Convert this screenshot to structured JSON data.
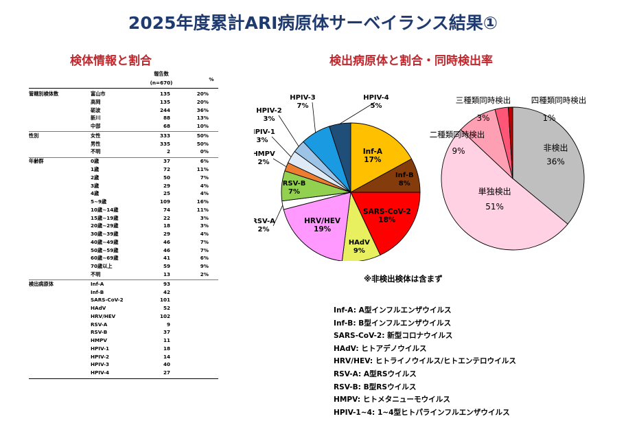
{
  "title": "2025年度累計ARI病原体サーベイランス結果①",
  "left_section_title": "検体情報と割合",
  "right_section_title": "検出病原体と割合・同時検出率",
  "table": {
    "header_count": "報告数",
    "header_n": "(n=670)",
    "header_pct": "%",
    "groups": [
      {
        "label": "管轄別検体数",
        "rows": [
          {
            "name": "富山市",
            "count": "135",
            "pct": "20%"
          },
          {
            "name": "高岡",
            "count": "135",
            "pct": "20%"
          },
          {
            "name": "砺波",
            "count": "244",
            "pct": "36%"
          },
          {
            "name": "新川",
            "count": "88",
            "pct": "13%"
          },
          {
            "name": "中部",
            "count": "68",
            "pct": "10%"
          }
        ]
      },
      {
        "label": "性別",
        "rows": [
          {
            "name": "女性",
            "count": "333",
            "pct": "50%"
          },
          {
            "name": "男性",
            "count": "335",
            "pct": "50%"
          },
          {
            "name": "不明",
            "count": "2",
            "pct": "0%"
          }
        ]
      },
      {
        "label": "年齢群",
        "rows": [
          {
            "name": "0歳",
            "count": "37",
            "pct": "6%"
          },
          {
            "name": "1歳",
            "count": "72",
            "pct": "11%"
          },
          {
            "name": "2歳",
            "count": "50",
            "pct": "7%"
          },
          {
            "name": "3歳",
            "count": "29",
            "pct": "4%"
          },
          {
            "name": "4歳",
            "count": "25",
            "pct": "4%"
          },
          {
            "name": "5~9歳",
            "count": "109",
            "pct": "16%"
          },
          {
            "name": "10歳~14歳",
            "count": "74",
            "pct": "11%"
          },
          {
            "name": "15歳~19歳",
            "count": "22",
            "pct": "3%"
          },
          {
            "name": "20歳~29歳",
            "count": "18",
            "pct": "3%"
          },
          {
            "name": "30歳~39歳",
            "count": "29",
            "pct": "4%"
          },
          {
            "name": "40歳~49歳",
            "count": "46",
            "pct": "7%"
          },
          {
            "name": "50歳~59歳",
            "count": "46",
            "pct": "7%"
          },
          {
            "name": "60歳~69歳",
            "count": "41",
            "pct": "6%"
          },
          {
            "name": "70歳以上",
            "count": "59",
            "pct": "9%"
          },
          {
            "name": "不明",
            "count": "13",
            "pct": "2%"
          }
        ]
      },
      {
        "label": "検出病原体",
        "rows": [
          {
            "name": "Inf-A",
            "count": "93",
            "pct": ""
          },
          {
            "name": "Inf-B",
            "count": "42",
            "pct": ""
          },
          {
            "name": "SARS-CoV-2",
            "count": "101",
            "pct": ""
          },
          {
            "name": "HAdV",
            "count": "52",
            "pct": ""
          },
          {
            "name": "HRV/HEV",
            "count": "102",
            "pct": ""
          },
          {
            "name": "RSV-A",
            "count": "9",
            "pct": ""
          },
          {
            "name": "RSV-B",
            "count": "37",
            "pct": ""
          },
          {
            "name": "HMPV",
            "count": "11",
            "pct": ""
          },
          {
            "name": "HPIV-1",
            "count": "18",
            "pct": ""
          },
          {
            "name": "HPIV-2",
            "count": "14",
            "pct": ""
          },
          {
            "name": "HPIV-3",
            "count": "40",
            "pct": ""
          },
          {
            "name": "HPIV-4",
            "count": "27",
            "pct": ""
          }
        ]
      }
    ]
  },
  "chart_data": [
    {
      "type": "pie",
      "title": "",
      "slices": [
        {
          "name": "Inf-A",
          "label": "Inf-A",
          "value": 17,
          "pct_label": "17%",
          "color": "#ffc000"
        },
        {
          "name": "Inf-B",
          "label": "Inf-B",
          "value": 8,
          "pct_label": "8%",
          "color": "#843c0c"
        },
        {
          "name": "SARS-CoV-2",
          "label": "SARS-CoV-2",
          "value": 18,
          "pct_label": "18%",
          "color": "#ff0000"
        },
        {
          "name": "HAdV",
          "label": "HAdV",
          "value": 9,
          "pct_label": "9%",
          "color": "#e8f060"
        },
        {
          "name": "HRV/HEV",
          "label": "HRV/HEV",
          "value": 19,
          "pct_label": "19%",
          "color": "#ff99ff"
        },
        {
          "name": "RSV-A",
          "label": "RSV-A",
          "value": 2,
          "pct_label": "2%",
          "color": "#ffffff"
        },
        {
          "name": "RSV-B",
          "label": "RSV-B",
          "value": 7,
          "pct_label": "7%",
          "color": "#92d050"
        },
        {
          "name": "HMPV",
          "label": "HMPV",
          "value": 2,
          "pct_label": "2%",
          "color": "#ed7d31"
        },
        {
          "name": "HPIV-1",
          "label": "HPIV-1",
          "value": 3,
          "pct_label": "3%",
          "color": "#deebf7"
        },
        {
          "name": "HPIV-2",
          "label": "HPIV-2",
          "value": 3,
          "pct_label": "3%",
          "color": "#9dc3e6"
        },
        {
          "name": "HPIV-3",
          "label": "HPIV-3",
          "value": 7,
          "pct_label": "7%",
          "color": "#1a9ae0"
        },
        {
          "name": "HPIV-4",
          "label": "HPIV-4",
          "value": 5,
          "pct_label": "5%",
          "color": "#1f4e79"
        }
      ]
    },
    {
      "type": "pie",
      "title": "",
      "slices": [
        {
          "name": "非検出",
          "label": "非検出",
          "value": 36,
          "pct_label": "36%",
          "color": "#bfbfbf"
        },
        {
          "name": "単独検出",
          "label": "単独検出",
          "value": 51,
          "pct_label": "51%",
          "color": "#ffd1e3"
        },
        {
          "name": "二種類同時検出",
          "label": "二種類同時検出",
          "value": 9,
          "pct_label": "9%",
          "color": "#ff9fb4"
        },
        {
          "name": "三種類同時検出",
          "label": "三種類同時検出",
          "value": 3,
          "pct_label": "3%",
          "color": "#ff5577"
        },
        {
          "name": "四種類同時検出",
          "label": "四種類同時検出",
          "value": 1,
          "pct_label": "1%",
          "color": "#c00000"
        }
      ]
    }
  ],
  "note": "※非検出検体は含まず",
  "abbreviations": [
    "Inf-A: A型インフルエンザウイルス",
    "Inf-B: B型インフルエンザウイルス",
    "SARS-CoV-2: 新型コロナウイルス",
    "HAdV: ヒトアデノウイルス",
    "HRV/HEV: ヒトライノウイルス/ヒトエンテロウイルス",
    "RSV-A: A型RSウイルス",
    "RSV-B: B型RSウイルス",
    "HMPV: ヒトメタニューモウイルス",
    "HPIV-1~4: 1~4型ヒトパラインフルエンザウイルス"
  ]
}
